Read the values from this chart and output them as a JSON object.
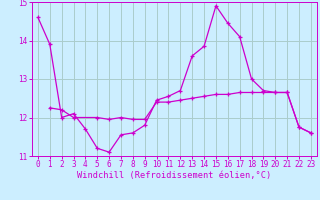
{
  "xlabel": "Windchill (Refroidissement éolien,°C)",
  "bg_color": "#cceeff",
  "line_color": "#cc00cc",
  "grid_color": "#aacccc",
  "line1_x": [
    0,
    1,
    2,
    3,
    4,
    5,
    6,
    7,
    8,
    9,
    10,
    11,
    12,
    13,
    14,
    15,
    16,
    17,
    18,
    19,
    20,
    21,
    22,
    23
  ],
  "line1_y": [
    14.6,
    13.9,
    12.0,
    12.1,
    11.7,
    11.2,
    11.1,
    11.55,
    11.6,
    11.8,
    12.45,
    12.55,
    12.7,
    13.6,
    13.85,
    14.9,
    14.45,
    14.1,
    13.0,
    12.7,
    12.65,
    12.65,
    11.75,
    11.6
  ],
  "line2_x": [
    1,
    2,
    3,
    5,
    6,
    7,
    8,
    9,
    10,
    11,
    12,
    13,
    14,
    15,
    16,
    17,
    18,
    19,
    20,
    21,
    22,
    23
  ],
  "line2_y": [
    12.25,
    12.2,
    12.0,
    12.0,
    11.95,
    12.0,
    11.95,
    11.95,
    12.4,
    12.4,
    12.45,
    12.5,
    12.55,
    12.6,
    12.6,
    12.65,
    12.65,
    12.65,
    12.65,
    12.65,
    11.75,
    11.6
  ],
  "ylim": [
    11.0,
    15.0
  ],
  "xlim": [
    -0.5,
    23.5
  ],
  "yticks": [
    11,
    12,
    13,
    14,
    15
  ],
  "xticks": [
    0,
    1,
    2,
    3,
    4,
    5,
    6,
    7,
    8,
    9,
    10,
    11,
    12,
    13,
    14,
    15,
    16,
    17,
    18,
    19,
    20,
    21,
    22,
    23
  ],
  "tick_fontsize": 5.5,
  "ylabel_fontsize": 6.0,
  "xlabel_fontsize": 6.2
}
